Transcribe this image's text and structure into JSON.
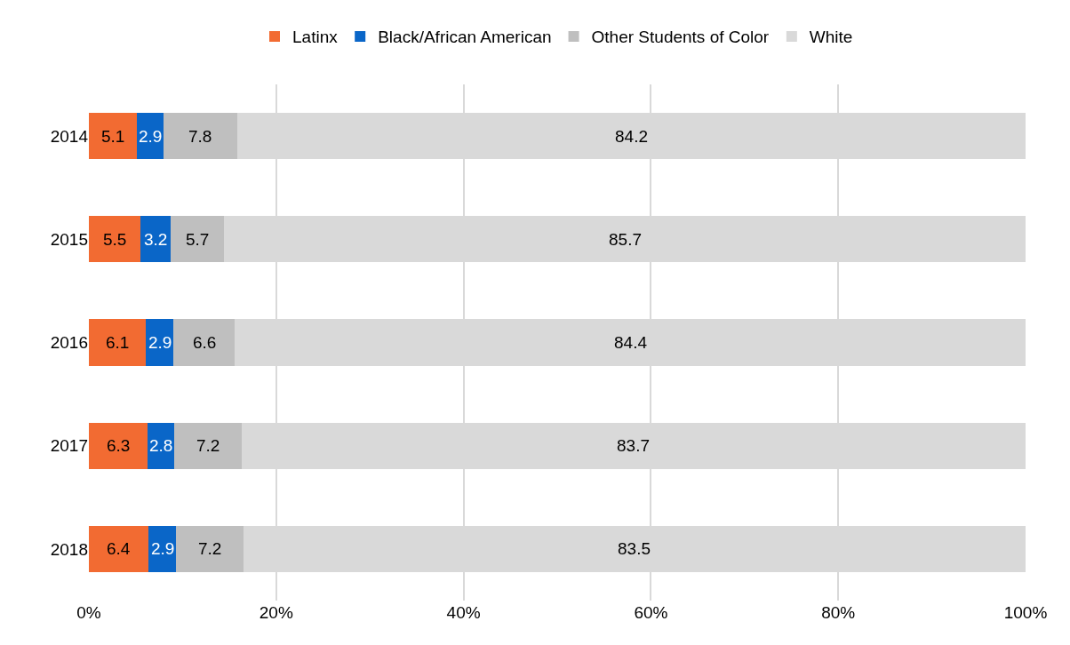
{
  "chart_data": {
    "type": "bar",
    "orientation": "horizontal",
    "stacked": true,
    "categories": [
      "2014",
      "2015",
      "2016",
      "2017",
      "2018"
    ],
    "series": [
      {
        "name": "Latinx",
        "color": "#f26b32",
        "values": [
          5.1,
          5.5,
          6.1,
          6.3,
          6.4
        ]
      },
      {
        "name": "Black/African American",
        "color": "#0a66c8",
        "values": [
          2.9,
          3.2,
          2.9,
          2.8,
          2.9
        ]
      },
      {
        "name": "Other Students of Color",
        "color": "#bfbfbf",
        "values": [
          7.8,
          5.7,
          6.6,
          7.2,
          7.2
        ]
      },
      {
        "name": "White",
        "color": "#d9d9d9",
        "values": [
          84.2,
          85.7,
          84.4,
          83.7,
          83.5
        ]
      }
    ],
    "xlim": [
      0,
      100
    ],
    "xticks": [
      {
        "value": 0,
        "label": "0%"
      },
      {
        "value": 20,
        "label": "20%"
      },
      {
        "value": 40,
        "label": "40%"
      },
      {
        "value": 60,
        "label": "60%"
      },
      {
        "value": 80,
        "label": "80%"
      },
      {
        "value": 100,
        "label": "100%"
      }
    ],
    "grid": "x",
    "legend": "top",
    "data_labels": true
  }
}
